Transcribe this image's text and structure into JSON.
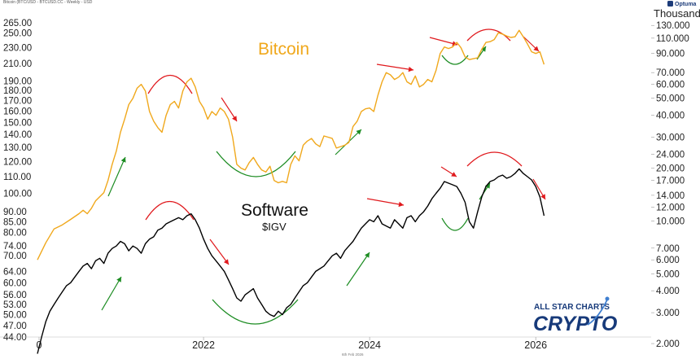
{
  "header_text": "Bitcoin (BTC/USD - BTCUSD.CC - Weekly - USD",
  "footer_text": "6th Feb 2026",
  "brand": "Optuma",
  "logo": {
    "line1": "ALL STAR CHARTS",
    "line2": "CRYPTO"
  },
  "colors": {
    "bitcoin": "#f0a81c",
    "software": "#000000",
    "down_arrow": "#e0191d",
    "up_arrow": "#1c8c22",
    "top_arc": "#e0191d",
    "bottom_arc": "#1c8c22"
  },
  "chart_data": {
    "type": "line",
    "title": "",
    "x_tick_labels": [
      "0",
      "2022",
      "2024",
      "2026"
    ],
    "x_range": [
      2020.0,
      2026.9
    ],
    "left_axis": {
      "unit": "",
      "scale": "log",
      "range": [
        44,
        265
      ],
      "ticks": [
        "265.00",
        "250.00",
        "230.00",
        "210.00",
        "190.00",
        "180.00",
        "170.00",
        "160.00",
        "150.00",
        "140.00",
        "130.00",
        "120.00",
        "110.00",
        "100.00",
        "90.00",
        "85.00",
        "80.00",
        "74.00",
        "70.00",
        "64.00",
        "60.00",
        "56.00",
        "53.00",
        "50.00",
        "47.00",
        "44.00"
      ]
    },
    "right_axis": {
      "unit": "Thousand",
      "scale": "log",
      "ticks": [
        "130.000",
        "110.000",
        "90.000",
        "70.000",
        "60.000",
        "50.000",
        "40.000",
        "30.000",
        "24.000",
        "20.000",
        "17.000",
        "14.000",
        "12.000",
        "10.000",
        "7.000",
        "6.000",
        "5.000",
        "4.000",
        "3.000",
        "2.000"
      ]
    },
    "grid": false,
    "series": [
      {
        "name": "Bitcoin",
        "axis": "right",
        "points": [
          [
            2020.0,
            6.0
          ],
          [
            2020.1,
            7.5
          ],
          [
            2020.2,
            9.0
          ],
          [
            2020.3,
            9.5
          ],
          [
            2020.4,
            10.2
          ],
          [
            2020.5,
            11.0
          ],
          [
            2020.55,
            11.5
          ],
          [
            2020.6,
            11.0
          ],
          [
            2020.65,
            11.8
          ],
          [
            2020.7,
            13.0
          ],
          [
            2020.8,
            14.5
          ],
          [
            2020.85,
            17.0
          ],
          [
            2020.9,
            21.0
          ],
          [
            2020.95,
            25.0
          ],
          [
            2021.0,
            32.0
          ],
          [
            2021.05,
            38.0
          ],
          [
            2021.1,
            46.0
          ],
          [
            2021.15,
            50.0
          ],
          [
            2021.2,
            57.0
          ],
          [
            2021.25,
            60.0
          ],
          [
            2021.3,
            55.0
          ],
          [
            2021.35,
            42.0
          ],
          [
            2021.4,
            37.0
          ],
          [
            2021.45,
            34.0
          ],
          [
            2021.5,
            32.0
          ],
          [
            2021.55,
            40.0
          ],
          [
            2021.6,
            46.0
          ],
          [
            2021.65,
            48.0
          ],
          [
            2021.7,
            44.0
          ],
          [
            2021.75,
            55.0
          ],
          [
            2021.8,
            62.0
          ],
          [
            2021.85,
            65.0
          ],
          [
            2021.9,
            58.0
          ],
          [
            2021.95,
            48.0
          ],
          [
            2022.0,
            44.0
          ],
          [
            2022.05,
            38.0
          ],
          [
            2022.1,
            42.0
          ],
          [
            2022.15,
            40.0
          ],
          [
            2022.2,
            44.0
          ],
          [
            2022.25,
            42.0
          ],
          [
            2022.3,
            38.0
          ],
          [
            2022.35,
            30.0
          ],
          [
            2022.4,
            21.0
          ],
          [
            2022.45,
            20.0
          ],
          [
            2022.5,
            19.5
          ],
          [
            2022.55,
            21.5
          ],
          [
            2022.6,
            23.0
          ],
          [
            2022.65,
            21.0
          ],
          [
            2022.7,
            19.5
          ],
          [
            2022.75,
            19.0
          ],
          [
            2022.8,
            20.5
          ],
          [
            2022.85,
            17.0
          ],
          [
            2022.9,
            16.5
          ],
          [
            2022.95,
            16.8
          ],
          [
            2023.0,
            16.5
          ],
          [
            2023.05,
            21.0
          ],
          [
            2023.1,
            23.5
          ],
          [
            2023.15,
            22.0
          ],
          [
            2023.2,
            27.0
          ],
          [
            2023.25,
            28.5
          ],
          [
            2023.3,
            29.5
          ],
          [
            2023.35,
            27.5
          ],
          [
            2023.4,
            26.5
          ],
          [
            2023.45,
            30.5
          ],
          [
            2023.5,
            30.0
          ],
          [
            2023.55,
            29.5
          ],
          [
            2023.6,
            26.0
          ],
          [
            2023.65,
            26.5
          ],
          [
            2023.7,
            27.0
          ],
          [
            2023.75,
            28.0
          ],
          [
            2023.8,
            34.5
          ],
          [
            2023.85,
            37.0
          ],
          [
            2023.9,
            42.0
          ],
          [
            2023.95,
            43.5
          ],
          [
            2024.0,
            44.0
          ],
          [
            2024.05,
            42.0
          ],
          [
            2024.1,
            52.0
          ],
          [
            2024.15,
            62.0
          ],
          [
            2024.2,
            70.0
          ],
          [
            2024.25,
            68.0
          ],
          [
            2024.3,
            64.0
          ],
          [
            2024.35,
            66.0
          ],
          [
            2024.4,
            70.0
          ],
          [
            2024.45,
            62.0
          ],
          [
            2024.5,
            60.0
          ],
          [
            2024.55,
            67.0
          ],
          [
            2024.6,
            58.0
          ],
          [
            2024.65,
            60.0
          ],
          [
            2024.7,
            64.0
          ],
          [
            2024.75,
            62.0
          ],
          [
            2024.8,
            72.0
          ],
          [
            2024.85,
            90.0
          ],
          [
            2024.9,
            98.0
          ],
          [
            2024.95,
            96.0
          ],
          [
            2025.0,
            98.0
          ],
          [
            2025.05,
            104.0
          ],
          [
            2025.1,
            97.0
          ],
          [
            2025.15,
            86.0
          ],
          [
            2025.2,
            83.0
          ],
          [
            2025.25,
            84.0
          ],
          [
            2025.3,
            85.0
          ],
          [
            2025.35,
            95.0
          ],
          [
            2025.4,
            104.0
          ],
          [
            2025.45,
            105.0
          ],
          [
            2025.5,
            108.0
          ],
          [
            2025.55,
            118.0
          ],
          [
            2025.6,
            116.0
          ],
          [
            2025.65,
            113.0
          ],
          [
            2025.7,
            111.0
          ],
          [
            2025.75,
            112.0
          ],
          [
            2025.8,
            122.0
          ],
          [
            2025.85,
            112.0
          ],
          [
            2025.9,
            102.0
          ],
          [
            2025.95,
            92.0
          ],
          [
            2026.0,
            90.0
          ],
          [
            2026.05,
            92.0
          ],
          [
            2026.1,
            78.0
          ]
        ]
      },
      {
        "name": "Software",
        "ticker": "$IGV",
        "axis": "left",
        "points": [
          [
            2020.0,
            40.0
          ],
          [
            2020.05,
            44.0
          ],
          [
            2020.1,
            48.0
          ],
          [
            2020.15,
            51.0
          ],
          [
            2020.2,
            53.0
          ],
          [
            2020.25,
            55.0
          ],
          [
            2020.3,
            57.0
          ],
          [
            2020.35,
            59.0
          ],
          [
            2020.4,
            60.0
          ],
          [
            2020.45,
            62.0
          ],
          [
            2020.5,
            64.0
          ],
          [
            2020.55,
            66.0
          ],
          [
            2020.6,
            67.0
          ],
          [
            2020.65,
            65.0
          ],
          [
            2020.7,
            68.0
          ],
          [
            2020.75,
            69.0
          ],
          [
            2020.8,
            67.0
          ],
          [
            2020.85,
            71.0
          ],
          [
            2020.9,
            73.0
          ],
          [
            2020.95,
            74.0
          ],
          [
            2021.0,
            76.0
          ],
          [
            2021.05,
            75.0
          ],
          [
            2021.1,
            72.0
          ],
          [
            2021.15,
            74.0
          ],
          [
            2021.2,
            73.0
          ],
          [
            2021.25,
            71.0
          ],
          [
            2021.3,
            75.0
          ],
          [
            2021.35,
            77.0
          ],
          [
            2021.4,
            78.0
          ],
          [
            2021.45,
            81.0
          ],
          [
            2021.5,
            82.0
          ],
          [
            2021.55,
            84.0
          ],
          [
            2021.6,
            85.0
          ],
          [
            2021.65,
            86.0
          ],
          [
            2021.7,
            87.0
          ],
          [
            2021.75,
            86.0
          ],
          [
            2021.8,
            88.0
          ],
          [
            2021.85,
            89.0
          ],
          [
            2021.9,
            86.0
          ],
          [
            2021.95,
            82.0
          ],
          [
            2022.0,
            77.0
          ],
          [
            2022.05,
            73.0
          ],
          [
            2022.1,
            70.0
          ],
          [
            2022.15,
            68.0
          ],
          [
            2022.2,
            66.0
          ],
          [
            2022.25,
            64.0
          ],
          [
            2022.3,
            61.0
          ],
          [
            2022.35,
            58.0
          ],
          [
            2022.4,
            55.0
          ],
          [
            2022.45,
            54.0
          ],
          [
            2022.5,
            56.0
          ],
          [
            2022.55,
            57.0
          ],
          [
            2022.6,
            58.0
          ],
          [
            2022.65,
            55.0
          ],
          [
            2022.7,
            53.0
          ],
          [
            2022.75,
            51.0
          ],
          [
            2022.8,
            50.0
          ],
          [
            2022.85,
            49.5
          ],
          [
            2022.9,
            51.0
          ],
          [
            2022.95,
            50.0
          ],
          [
            2023.0,
            52.0
          ],
          [
            2023.05,
            53.0
          ],
          [
            2023.1,
            55.0
          ],
          [
            2023.15,
            57.0
          ],
          [
            2023.2,
            59.0
          ],
          [
            2023.25,
            60.0
          ],
          [
            2023.3,
            62.0
          ],
          [
            2023.35,
            64.0
          ],
          [
            2023.4,
            65.0
          ],
          [
            2023.45,
            66.0
          ],
          [
            2023.5,
            68.0
          ],
          [
            2023.55,
            70.0
          ],
          [
            2023.6,
            71.0
          ],
          [
            2023.65,
            69.0
          ],
          [
            2023.7,
            72.0
          ],
          [
            2023.75,
            74.0
          ],
          [
            2023.8,
            76.0
          ],
          [
            2023.85,
            79.0
          ],
          [
            2023.9,
            82.0
          ],
          [
            2023.95,
            84.0
          ],
          [
            2024.0,
            86.0
          ],
          [
            2024.05,
            85.0
          ],
          [
            2024.1,
            88.0
          ],
          [
            2024.15,
            84.0
          ],
          [
            2024.2,
            83.0
          ],
          [
            2024.25,
            82.0
          ],
          [
            2024.3,
            86.0
          ],
          [
            2024.35,
            84.0
          ],
          [
            2024.4,
            82.0
          ],
          [
            2024.45,
            87.0
          ],
          [
            2024.5,
            88.0
          ],
          [
            2024.55,
            85.0
          ],
          [
            2024.6,
            88.0
          ],
          [
            2024.65,
            90.0
          ],
          [
            2024.7,
            93.0
          ],
          [
            2024.75,
            97.0
          ],
          [
            2024.8,
            100.0
          ],
          [
            2024.85,
            103.0
          ],
          [
            2024.9,
            107.0
          ],
          [
            2024.95,
            106.0
          ],
          [
            2025.0,
            105.0
          ],
          [
            2025.05,
            104.0
          ],
          [
            2025.1,
            100.0
          ],
          [
            2025.15,
            95.0
          ],
          [
            2025.2,
            85.0
          ],
          [
            2025.25,
            82.0
          ],
          [
            2025.3,
            90.0
          ],
          [
            2025.35,
            98.0
          ],
          [
            2025.4,
            104.0
          ],
          [
            2025.45,
            107.0
          ],
          [
            2025.5,
            108.0
          ],
          [
            2025.55,
            110.0
          ],
          [
            2025.6,
            111.0
          ],
          [
            2025.65,
            109.0
          ],
          [
            2025.7,
            110.0
          ],
          [
            2025.75,
            112.0
          ],
          [
            2025.8,
            115.0
          ],
          [
            2025.85,
            112.0
          ],
          [
            2025.9,
            110.0
          ],
          [
            2025.95,
            108.0
          ],
          [
            2026.0,
            104.0
          ],
          [
            2026.05,
            98.0
          ],
          [
            2026.1,
            88.0
          ]
        ]
      }
    ],
    "annotations": {
      "bitcoin_label": "Bitcoin",
      "software_label": "Software",
      "software_ticker": "$IGV"
    }
  }
}
